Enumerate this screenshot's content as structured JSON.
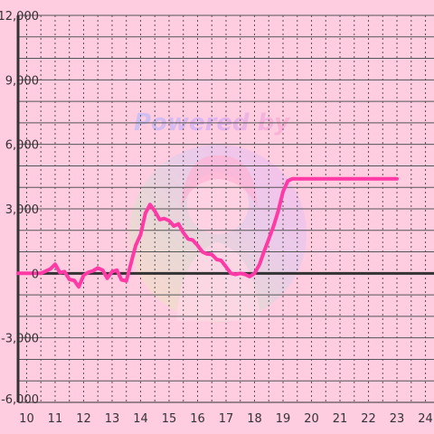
{
  "watermark": {
    "text": "Powered by",
    "colors": [
      "#a6b8ff",
      "#c5a3ff",
      "#ff9ec9"
    ]
  },
  "colors": {
    "background": "#ffcce0",
    "line": "#ff3aa6",
    "axis": "#333333",
    "grid": "#555555",
    "tick_text": "#333333"
  },
  "chart_data": {
    "type": "line",
    "title": "",
    "xlabel": "",
    "ylabel": "",
    "xlim": [
      9.7,
      24.3
    ],
    "ylim": [
      -6000,
      12000
    ],
    "x_ticks": [
      10,
      11,
      12,
      13,
      14,
      15,
      16,
      17,
      18,
      19,
      20,
      21,
      22,
      23,
      24
    ],
    "x_tick_labels": [
      "10",
      "11",
      "12",
      "13",
      "14",
      "15",
      "16",
      "17",
      "18",
      "19",
      "20",
      "21",
      "22",
      "23",
      "24"
    ],
    "y_ticks": [
      -6000,
      -3000,
      0,
      3000,
      6000,
      9000,
      12000
    ],
    "y_tick_labels": [
      "-6,000",
      "-3,000",
      "0",
      "3,000",
      "6,000",
      "9,000",
      "12,000"
    ],
    "grid": true,
    "series": [
      {
        "x": [
          9.7,
          10.0,
          10.5,
          10.83,
          11.0,
          11.17,
          11.33,
          11.5,
          11.67,
          11.83,
          12.0,
          12.17,
          12.33,
          12.5,
          12.67,
          12.83,
          13.0,
          13.17,
          13.33,
          13.5,
          13.67,
          13.83,
          14.0,
          14.17,
          14.33,
          14.5,
          14.67,
          14.83,
          15.0,
          15.17,
          15.33,
          15.5,
          15.67,
          15.83,
          16.0,
          16.17,
          16.33,
          16.5,
          16.67,
          16.83,
          17.0,
          17.17,
          17.33,
          17.5,
          17.67,
          17.83,
          18.0,
          18.17,
          18.33,
          18.5,
          18.67,
          18.83,
          19.0,
          19.17,
          19.33,
          19.5,
          19.67,
          19.83,
          20.0,
          20.17,
          20.33,
          20.5,
          20.67,
          20.83,
          21.0,
          21.17,
          21.33,
          21.5,
          21.67,
          21.83,
          22.0,
          22.17,
          22.33,
          22.5,
          22.67,
          22.83,
          23.0
        ],
        "y": [
          0,
          0,
          0,
          200,
          420,
          30,
          80,
          -280,
          -330,
          -630,
          -90,
          50,
          120,
          250,
          150,
          -230,
          80,
          150,
          -300,
          -350,
          500,
          1300,
          1800,
          2800,
          3200,
          2900,
          2500,
          2550,
          2450,
          2200,
          2300,
          1900,
          1600,
          1550,
          1300,
          1000,
          900,
          880,
          650,
          600,
          300,
          0,
          -50,
          0,
          -50,
          -150,
          0,
          400,
          1000,
          1600,
          2200,
          2900,
          3800,
          4300,
          4400,
          4400,
          4400,
          4400,
          4400,
          4400,
          4400,
          4400,
          4400,
          4400,
          4400,
          4400,
          4400,
          4400,
          4400,
          4400,
          4400,
          4400,
          4400,
          4400,
          4400,
          4400,
          4400
        ]
      }
    ]
  }
}
